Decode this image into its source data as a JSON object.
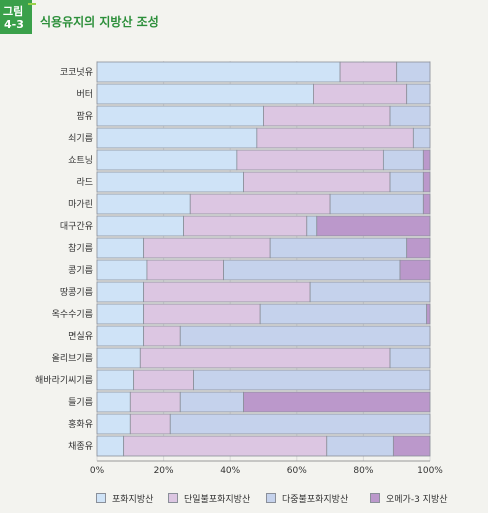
{
  "figure": {
    "badge_line1": "그림",
    "badge_line2": "4-3",
    "title": "식용유지의 지방산 조성"
  },
  "colors": {
    "saturated": "#cfe3f7",
    "mono": "#dcc6e2",
    "poly": "#c5d2ec",
    "omega3": "#bb98cb",
    "bar_border": "#8a8f99",
    "grid": "#d8d8d8"
  },
  "chart_data": {
    "type": "bar",
    "orientation": "horizontal",
    "stacked": true,
    "title": "식용유지의 지방산 조성",
    "categories": [
      "코코넛유",
      "버터",
      "팜유",
      "쇠기름",
      "쇼트닝",
      "라드",
      "마가린",
      "대구간유",
      "참기름",
      "콩기름",
      "땅콩기름",
      "옥수수기름",
      "면실유",
      "올리브기름",
      "해바라기씨기름",
      "들기름",
      "홍화유",
      "채종유"
    ],
    "series": [
      {
        "name": "포화지방산",
        "color_key": "saturated",
        "values": [
          73,
          65,
          50,
          48,
          42,
          44,
          28,
          26,
          14,
          15,
          14,
          14,
          14,
          13,
          11,
          10,
          10,
          8
        ]
      },
      {
        "name": "단일불포화지방산",
        "color_key": "mono",
        "values": [
          17,
          28,
          38,
          47,
          44,
          44,
          42,
          37,
          38,
          23,
          50,
          35,
          11,
          75,
          18,
          15,
          12,
          61
        ]
      },
      {
        "name": "다중불포화지방산",
        "color_key": "poly",
        "values": [
          10,
          7,
          12,
          5,
          12,
          10,
          28,
          3,
          41,
          53,
          36,
          50,
          75,
          12,
          71,
          19,
          78,
          20
        ]
      },
      {
        "name": "오메가-3 지방산",
        "color_key": "omega3",
        "values": [
          0,
          0,
          0,
          0,
          2,
          2,
          2,
          34,
          7,
          9,
          0,
          1,
          0,
          0,
          0,
          56,
          0,
          11
        ]
      }
    ],
    "xlim": [
      0,
      100
    ],
    "x_ticks": [
      "0%",
      "20%",
      "40%",
      "60%",
      "80%",
      "100%"
    ],
    "legend_position": "bottom"
  }
}
